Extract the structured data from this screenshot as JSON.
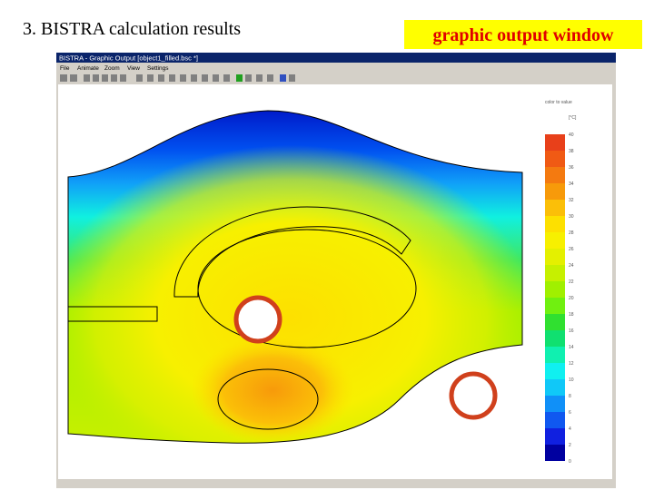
{
  "slide": {
    "title": "3. BISTRA calculation results",
    "callout": "graphic output window"
  },
  "window": {
    "title": "BISTRA - Graphic Output [object1_filled.bsc *]",
    "menu": [
      "File",
      "Animate",
      "Zoom",
      "View",
      "Settings"
    ]
  },
  "legend": {
    "caption": "color to value",
    "unit": "[°C]",
    "labels": [
      "40",
      "38",
      "36",
      "34",
      "32",
      "30",
      "28",
      "26",
      "24",
      "22",
      "20",
      "18",
      "16",
      "14",
      "12",
      "10",
      "8",
      "6",
      "4",
      "2",
      "0"
    ],
    "colors": [
      "#e8401a",
      "#f05a14",
      "#f47a10",
      "#f79a0a",
      "#fbbf08",
      "#fde000",
      "#f7f000",
      "#e4f000",
      "#c6f000",
      "#a0f000",
      "#70f010",
      "#30e030",
      "#10e070",
      "#10f0b0",
      "#10f0f0",
      "#10c8f8",
      "#1090f8",
      "#1058f0",
      "#1020e0",
      "#0000a0"
    ]
  }
}
